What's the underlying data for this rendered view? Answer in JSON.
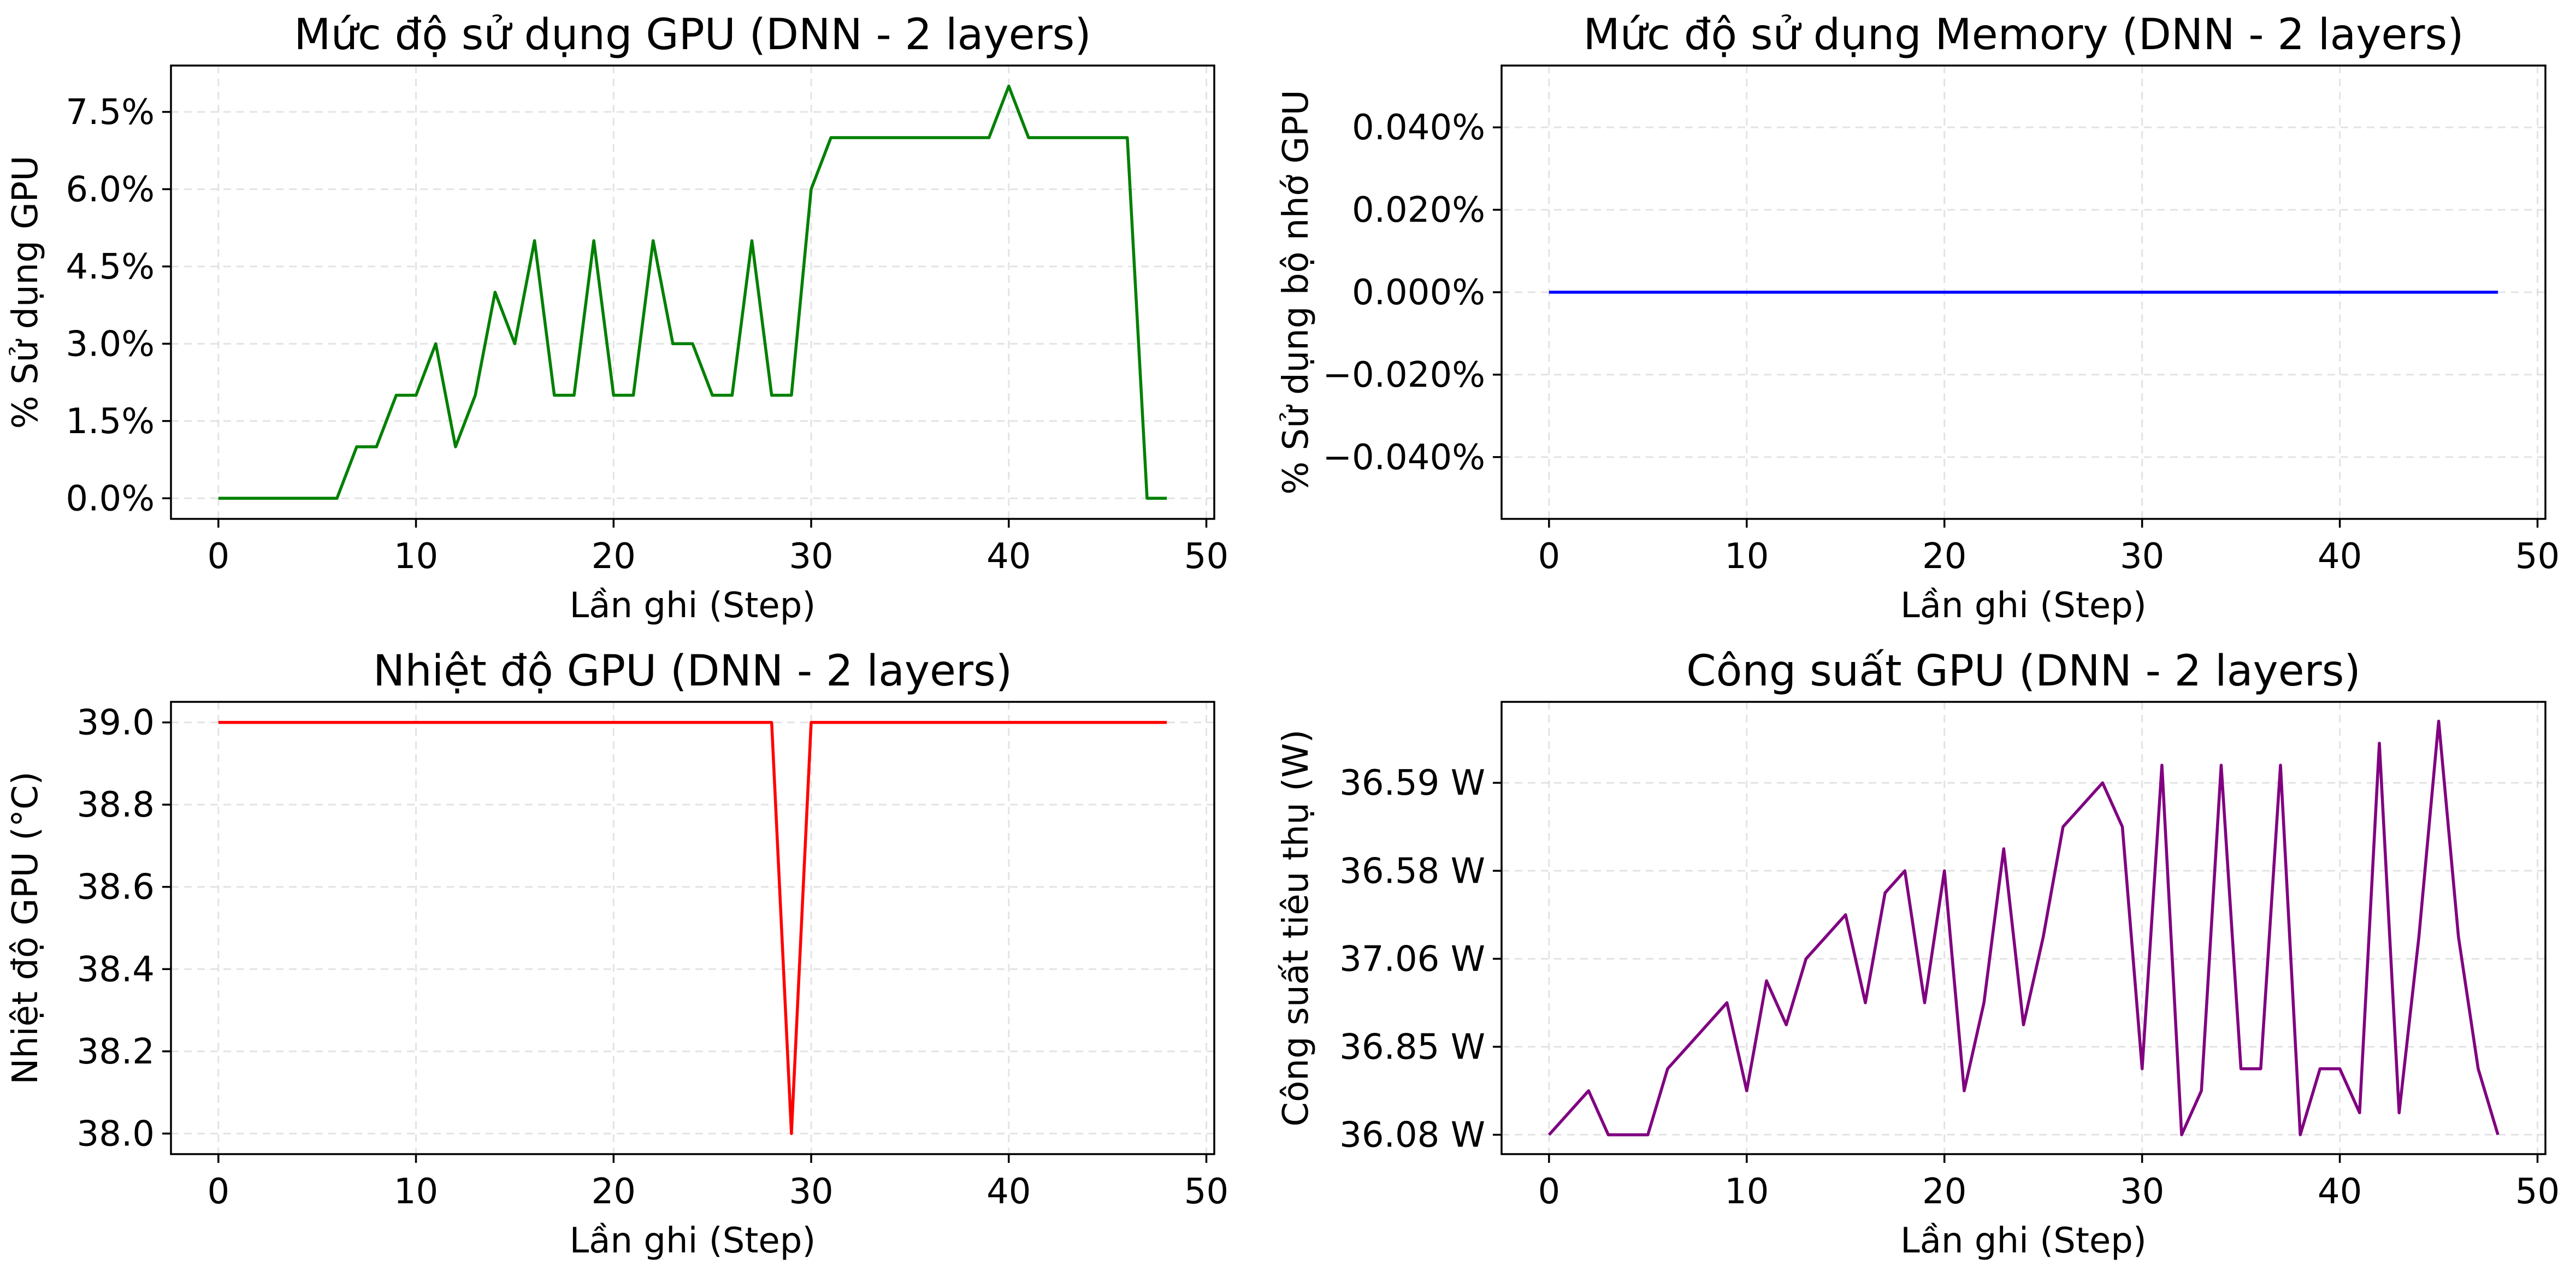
{
  "chart_data": [
    {
      "type": "line",
      "title": "Mức độ sử dụng GPU (DNN - 2 layers)",
      "xlabel": "Lần ghi (Step)",
      "ylabel": "% Sử dụng GPU",
      "xlim": [
        -2.4,
        50.4
      ],
      "ylim": [
        -0.4,
        8.4
      ],
      "grid": true,
      "xticks": [
        0,
        10,
        20,
        30,
        40,
        50
      ],
      "xtick_labels": [
        "0",
        "10",
        "20",
        "30",
        "40",
        "50"
      ],
      "yticks": [
        0,
        1.5,
        3,
        4.5,
        6,
        7.5
      ],
      "ytick_labels": [
        "0.0%",
        "1.5%",
        "3.0%",
        "4.5%",
        "6.0%",
        "7.5%"
      ],
      "series": [
        {
          "color": "#008000",
          "x": [
            0,
            1,
            2,
            3,
            4,
            5,
            6,
            7,
            8,
            9,
            10,
            11,
            12,
            13,
            14,
            15,
            16,
            17,
            18,
            19,
            20,
            21,
            22,
            23,
            24,
            25,
            26,
            27,
            28,
            29,
            30,
            31,
            32,
            33,
            34,
            35,
            36,
            37,
            38,
            39,
            40,
            41,
            42,
            43,
            44,
            45,
            46,
            47,
            48
          ],
          "y": [
            0,
            0,
            0,
            0,
            0,
            0,
            0,
            1,
            1,
            2,
            2,
            3,
            1,
            2,
            4,
            3,
            5,
            2,
            2,
            5,
            2,
            2,
            5,
            3,
            3,
            2,
            2,
            5,
            2,
            2,
            6,
            7,
            7,
            7,
            7,
            7,
            7,
            7,
            7,
            7,
            8,
            7,
            7,
            7,
            7,
            7,
            7,
            0,
            0
          ]
        }
      ]
    },
    {
      "type": "line",
      "title": "Mức độ sử dụng Memory (DNN - 2 layers)",
      "xlabel": "Lần ghi (Step)",
      "ylabel": "% Sử dụng bộ nhớ GPU",
      "xlim": [
        -2.4,
        50.4
      ],
      "ylim": [
        -0.055,
        0.055
      ],
      "grid": true,
      "xticks": [
        0,
        10,
        20,
        30,
        40,
        50
      ],
      "xtick_labels": [
        "0",
        "10",
        "20",
        "30",
        "40",
        "50"
      ],
      "yticks": [
        -0.04,
        -0.02,
        0,
        0.02,
        0.04
      ],
      "ytick_labels": [
        "−0.040%",
        "−0.020%",
        "0.000%",
        "0.020%",
        "0.040%"
      ],
      "series": [
        {
          "color": "#0000ff",
          "x": [
            0,
            1,
            2,
            3,
            4,
            5,
            6,
            7,
            8,
            9,
            10,
            11,
            12,
            13,
            14,
            15,
            16,
            17,
            18,
            19,
            20,
            21,
            22,
            23,
            24,
            25,
            26,
            27,
            28,
            29,
            30,
            31,
            32,
            33,
            34,
            35,
            36,
            37,
            38,
            39,
            40,
            41,
            42,
            43,
            44,
            45,
            46,
            47,
            48
          ],
          "y": [
            0,
            0,
            0,
            0,
            0,
            0,
            0,
            0,
            0,
            0,
            0,
            0,
            0,
            0,
            0,
            0,
            0,
            0,
            0,
            0,
            0,
            0,
            0,
            0,
            0,
            0,
            0,
            0,
            0,
            0,
            0,
            0,
            0,
            0,
            0,
            0,
            0,
            0,
            0,
            0,
            0,
            0,
            0,
            0,
            0,
            0,
            0,
            0,
            0
          ]
        }
      ]
    },
    {
      "type": "line",
      "title": "Nhiệt độ GPU (DNN - 2 layers)",
      "xlabel": "Lần ghi (Step)",
      "ylabel": "Nhiệt độ GPU (°C)",
      "xlim": [
        -2.4,
        50.4
      ],
      "ylim": [
        37.95,
        39.05
      ],
      "grid": true,
      "xticks": [
        0,
        10,
        20,
        30,
        40,
        50
      ],
      "xtick_labels": [
        "0",
        "10",
        "20",
        "30",
        "40",
        "50"
      ],
      "yticks": [
        38.0,
        38.2,
        38.4,
        38.6,
        38.8,
        39.0
      ],
      "ytick_labels": [
        "38.0",
        "38.2",
        "38.4",
        "38.6",
        "38.8",
        "39.0"
      ],
      "series": [
        {
          "color": "#ff0000",
          "x": [
            0,
            1,
            2,
            3,
            4,
            5,
            6,
            7,
            8,
            9,
            10,
            11,
            12,
            13,
            14,
            15,
            16,
            17,
            18,
            19,
            20,
            21,
            22,
            23,
            24,
            25,
            26,
            27,
            28,
            29,
            30,
            31,
            32,
            33,
            34,
            35,
            36,
            37,
            38,
            39,
            40,
            41,
            42,
            43,
            44,
            45,
            46,
            47,
            48
          ],
          "y": [
            39,
            39,
            39,
            39,
            39,
            39,
            39,
            39,
            39,
            39,
            39,
            39,
            39,
            39,
            39,
            39,
            39,
            39,
            39,
            39,
            39,
            39,
            39,
            39,
            39,
            39,
            39,
            39,
            39,
            38,
            39,
            39,
            39,
            39,
            39,
            39,
            39,
            39,
            39,
            39,
            39,
            39,
            39,
            39,
            39,
            39,
            39,
            39,
            39
          ]
        }
      ]
    },
    {
      "type": "line",
      "title": "Công suất GPU (DNN - 2 layers)",
      "xlabel": "Lần ghi (Step)",
      "ylabel": "Công suất tiêu thụ (W)",
      "xlim": [
        -2.4,
        50.4
      ],
      "ylim": [
        -0.22,
        4.92
      ],
      "grid": true,
      "xticks": [
        0,
        10,
        20,
        30,
        40,
        50
      ],
      "xtick_labels": [
        "0",
        "10",
        "20",
        "30",
        "40",
        "50"
      ],
      "yticks": [
        0,
        1,
        2,
        3,
        4
      ],
      "ytick_labels": [
        "36.08 W",
        "36.85 W",
        "37.06 W",
        "36.58 W",
        "36.59 W"
      ],
      "series": [
        {
          "color": "#800080",
          "x": [
            0,
            1,
            2,
            3,
            4,
            5,
            6,
            7,
            8,
            9,
            10,
            11,
            12,
            13,
            14,
            15,
            16,
            17,
            18,
            19,
            20,
            21,
            22,
            23,
            24,
            25,
            26,
            27,
            28,
            29,
            30,
            31,
            32,
            33,
            34,
            35,
            36,
            37,
            38,
            39,
            40,
            41,
            42,
            43,
            44,
            45,
            46,
            47,
            48
          ],
          "y": [
            0.0,
            0.25,
            0.5,
            0.0,
            0.0,
            0.0,
            0.75,
            1.0,
            1.25,
            1.5,
            0.5,
            1.75,
            1.25,
            2.0,
            2.25,
            2.5,
            1.5,
            2.75,
            3.0,
            1.5,
            3.0,
            0.5,
            1.5,
            3.25,
            1.25,
            2.25,
            3.5,
            3.75,
            4.0,
            3.5,
            0.75,
            4.2,
            0.0,
            0.5,
            4.2,
            0.75,
            0.75,
            4.2,
            0.0,
            0.75,
            0.75,
            0.25,
            4.45,
            0.25,
            2.25,
            4.7,
            2.25,
            0.75,
            0.0
          ]
        }
      ]
    }
  ]
}
